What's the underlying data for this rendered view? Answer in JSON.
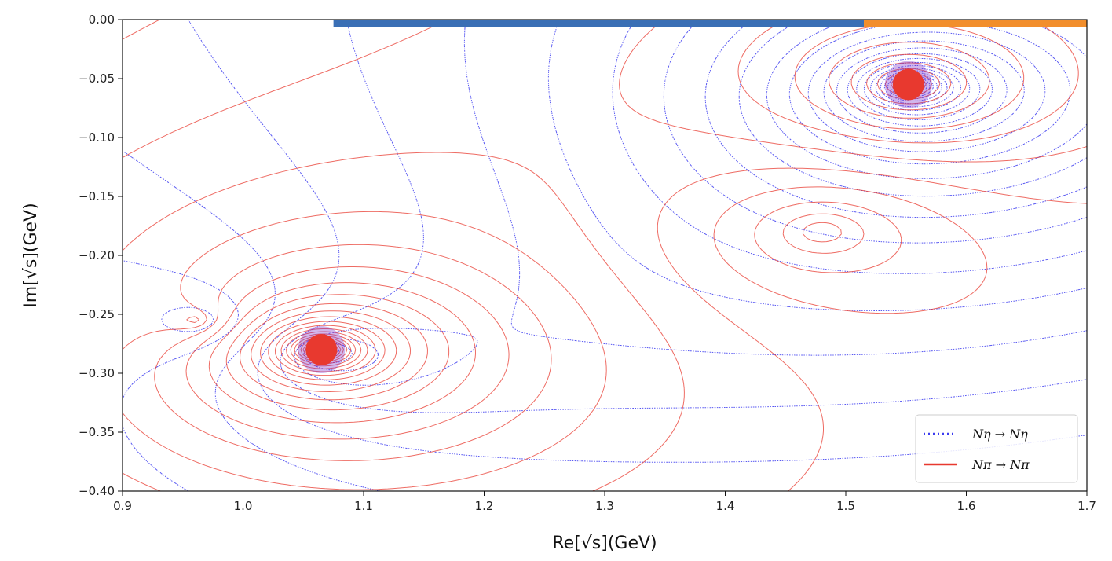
{
  "chart_data": {
    "type": "contour",
    "title": "",
    "xlabel": "Re[√s](GeV)",
    "ylabel": "Im[√s](GeV)",
    "xlim": [
      0.9,
      1.7
    ],
    "ylim": [
      -0.4,
      0.0
    ],
    "x_ticks": [
      "0.9",
      "1.0",
      "1.1",
      "1.2",
      "1.3",
      "1.4",
      "1.5",
      "1.6",
      "1.7"
    ],
    "y_ticks": [
      "0.00",
      "−0.05",
      "−0.10",
      "−0.15",
      "−0.20",
      "−0.25",
      "−0.30",
      "−0.35",
      "−0.40"
    ],
    "grid": false,
    "legend_position": "lower-right",
    "series": [
      {
        "name": "Nη → Nη",
        "style": "dotted",
        "color": "#3b3bf0",
        "poles": [
          {
            "re": 1.065,
            "im": -0.28
          },
          {
            "re": 1.552,
            "im": -0.055
          }
        ]
      },
      {
        "name": "Nπ → Nπ",
        "style": "solid",
        "color": "#e8392f",
        "poles": [
          {
            "re": 1.065,
            "im": -0.28
          },
          {
            "re": 1.552,
            "im": -0.055
          }
        ]
      }
    ],
    "threshold_bars": [
      {
        "color": "#3a6fb5",
        "x_start": 1.075,
        "x_end": 1.515
      },
      {
        "color": "#f28e2c",
        "x_start": 1.515,
        "x_end": 1.7
      }
    ]
  }
}
